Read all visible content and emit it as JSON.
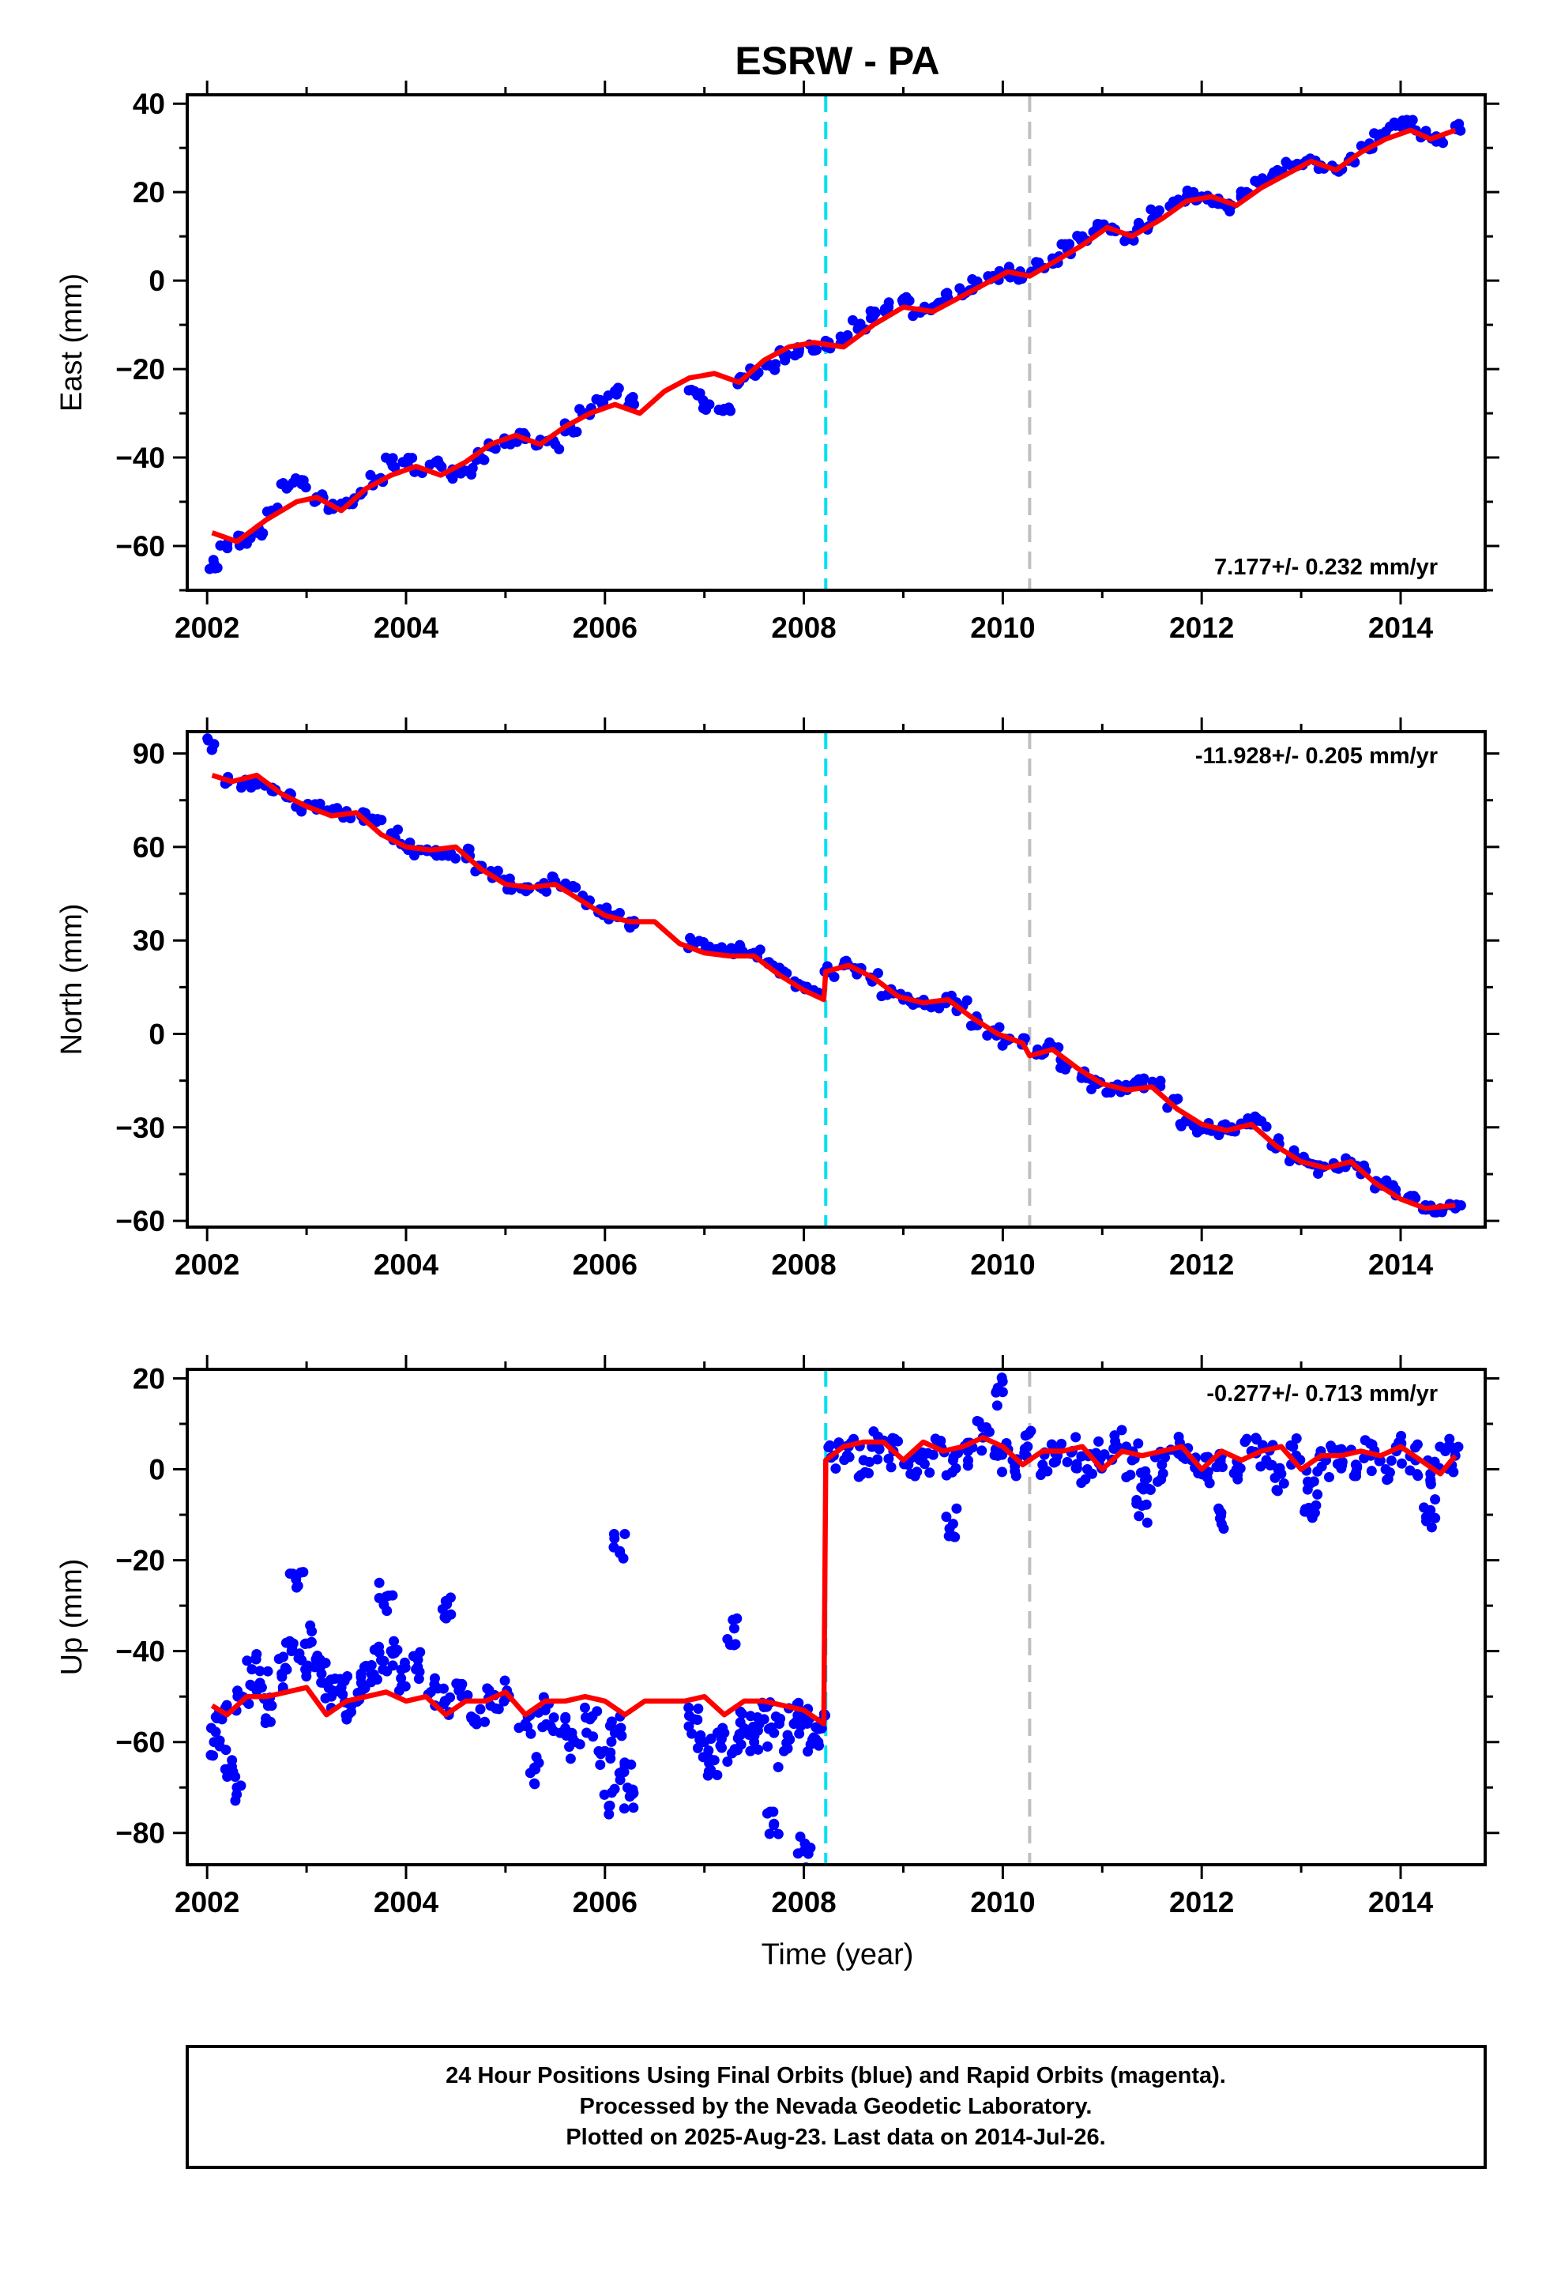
{
  "title": "ESRW - PA",
  "xlabel": "Time (year)",
  "colors": {
    "final_orbits": "#0000ff",
    "model_fit": "#ff0000",
    "event_line_1": "#00e0f0",
    "event_line_2": "#c0c0c0",
    "axes": "#000000"
  },
  "event_lines": [
    {
      "x": 2008.22,
      "color": "#00e0f0",
      "style": "dashed"
    },
    {
      "x": 2010.27,
      "color": "#c0c0c0",
      "style": "dashed"
    }
  ],
  "chart_data": [
    {
      "type": "scatter",
      "panel": "east",
      "ylabel": "East (mm)",
      "xlim": [
        2001.8,
        2014.85
      ],
      "ylim": [
        -70,
        42
      ],
      "xticks": [
        2002,
        2004,
        2006,
        2008,
        2010,
        2012,
        2014
      ],
      "yticks": [
        -60,
        -40,
        -20,
        0,
        20,
        40
      ],
      "rate_label": "7.177+/- 0.232 mm/yr",
      "rate_position": "bottom-right",
      "grid": false,
      "series": [
        {
          "name": "final_orbits",
          "style": "points",
          "x": [
            2002.07,
            2002.2,
            2002.35,
            2002.5,
            2002.65,
            2002.8,
            2002.95,
            2003.1,
            2003.25,
            2003.4,
            2003.55,
            2003.7,
            2003.85,
            2004.0,
            2004.15,
            2004.3,
            2004.45,
            2004.6,
            2004.75,
            2004.9,
            2005.05,
            2005.2,
            2005.35,
            2005.5,
            2005.65,
            2005.8,
            2005.95,
            2006.1,
            2006.25,
            2006.9,
            2007.05,
            2007.2,
            2007.35,
            2007.5,
            2007.65,
            2007.8,
            2007.95,
            2008.1,
            2008.25,
            2008.4,
            2008.55,
            2008.7,
            2008.85,
            2009.0,
            2009.15,
            2009.3,
            2009.45,
            2009.6,
            2009.75,
            2009.9,
            2010.05,
            2010.2,
            2010.35,
            2010.5,
            2010.65,
            2010.8,
            2010.95,
            2011.1,
            2011.25,
            2011.4,
            2011.55,
            2011.7,
            2011.85,
            2012.0,
            2012.15,
            2012.3,
            2012.45,
            2012.6,
            2012.75,
            2012.9,
            2013.05,
            2013.2,
            2013.35,
            2013.5,
            2013.65,
            2013.8,
            2013.95,
            2014.1,
            2014.25,
            2014.4,
            2014.55
          ],
          "y": [
            -64,
            -60,
            -59,
            -57,
            -52,
            -47,
            -46,
            -49,
            -51,
            -50,
            -48,
            -45,
            -41,
            -41,
            -43,
            -41,
            -44,
            -43,
            -40,
            -38,
            -37,
            -35,
            -36,
            -37,
            -33,
            -30,
            -27,
            -25,
            -27,
            -25,
            -28,
            -29,
            -23,
            -21,
            -19,
            -17,
            -16,
            -15,
            -14,
            -13,
            -10,
            -8,
            -6,
            -5,
            -7,
            -6,
            -4,
            -3,
            -1,
            1,
            2,
            1,
            3,
            5,
            7,
            10,
            12,
            12,
            10,
            12,
            15,
            17,
            19,
            19,
            18,
            17,
            20,
            22,
            24,
            26,
            27,
            26,
            25,
            28,
            30,
            33,
            35,
            35,
            33,
            32,
            35
          ]
        },
        {
          "name": "model_fit",
          "style": "line",
          "x": [
            2002.05,
            2002.3,
            2002.6,
            2002.9,
            2003.1,
            2003.35,
            2003.6,
            2003.85,
            2004.1,
            2004.35,
            2004.6,
            2004.85,
            2005.1,
            2005.35,
            2005.6,
            2005.85,
            2006.1,
            2006.35,
            2006.6,
            2006.85,
            2007.1,
            2007.35,
            2007.6,
            2007.85,
            2008.1,
            2008.4,
            2008.7,
            2009.0,
            2009.3,
            2009.55,
            2009.8,
            2010.05,
            2010.27,
            2010.5,
            2010.8,
            2011.05,
            2011.3,
            2011.6,
            2011.85,
            2012.1,
            2012.35,
            2012.6,
            2012.85,
            2013.1,
            2013.35,
            2013.6,
            2013.85,
            2014.1,
            2014.3,
            2014.55
          ],
          "y": [
            -57,
            -59,
            -54,
            -50,
            -49,
            -52,
            -47,
            -44,
            -42,
            -44,
            -41,
            -37,
            -35,
            -37,
            -33,
            -30,
            -28,
            -30,
            -25,
            -22,
            -21,
            -23,
            -18,
            -15,
            -14,
            -15,
            -10,
            -6,
            -7,
            -4,
            -1,
            2,
            1,
            4,
            8,
            12,
            10,
            14,
            18,
            19,
            17,
            21,
            24,
            27,
            25,
            29,
            32,
            34,
            32,
            34
          ]
        }
      ]
    },
    {
      "type": "scatter",
      "panel": "north",
      "ylabel": "North (mm)",
      "xlim": [
        2001.8,
        2014.85
      ],
      "ylim": [
        -62,
        97
      ],
      "xticks": [
        2002,
        2004,
        2006,
        2008,
        2010,
        2012,
        2014
      ],
      "yticks": [
        -60,
        -30,
        0,
        30,
        60,
        90
      ],
      "rate_label": "-11.928+/- 0.205 mm/yr",
      "rate_position": "top-right",
      "grid": false,
      "series": [
        {
          "name": "final_orbits",
          "style": "points",
          "x": [
            2002.07,
            2002.2,
            2002.35,
            2002.5,
            2002.65,
            2002.8,
            2002.95,
            2003.1,
            2003.25,
            2003.4,
            2003.55,
            2003.7,
            2003.85,
            2004.0,
            2004.15,
            2004.3,
            2004.45,
            2004.6,
            2004.75,
            2004.9,
            2005.05,
            2005.2,
            2005.35,
            2005.5,
            2005.65,
            2005.8,
            2005.95,
            2006.1,
            2006.25,
            2006.9,
            2007.05,
            2007.2,
            2007.35,
            2007.5,
            2007.65,
            2007.8,
            2007.95,
            2008.1,
            2008.25,
            2008.4,
            2008.55,
            2008.7,
            2008.85,
            2009.0,
            2009.15,
            2009.3,
            2009.45,
            2009.6,
            2009.75,
            2009.9,
            2010.05,
            2010.2,
            2010.35,
            2010.5,
            2010.65,
            2010.8,
            2010.95,
            2011.1,
            2011.25,
            2011.4,
            2011.55,
            2011.7,
            2011.85,
            2012.0,
            2012.15,
            2012.3,
            2012.45,
            2012.6,
            2012.75,
            2012.9,
            2013.05,
            2013.2,
            2013.35,
            2013.5,
            2013.65,
            2013.8,
            2013.95,
            2014.1,
            2014.25,
            2014.4,
            2014.55
          ],
          "y": [
            93,
            81,
            80,
            80,
            78,
            76,
            73,
            72,
            71,
            70,
            70,
            68,
            64,
            60,
            59,
            59,
            58,
            58,
            53,
            51,
            48,
            47,
            47,
            49,
            47,
            43,
            40,
            38,
            36,
            29,
            28,
            26,
            27,
            26,
            23,
            20,
            16,
            14,
            20,
            22,
            21,
            18,
            13,
            11,
            10,
            9,
            11,
            9,
            4,
            1,
            -2,
            -3,
            -5,
            -4,
            -10,
            -13,
            -16,
            -17,
            -18,
            -16,
            -17,
            -22,
            -28,
            -30,
            -31,
            -30,
            -29,
            -28,
            -35,
            -39,
            -41,
            -43,
            -43,
            -41,
            -44,
            -48,
            -50,
            -52,
            -55,
            -56,
            -56
          ]
        },
        {
          "name": "model_fit",
          "style": "line",
          "x": [
            2002.05,
            2002.25,
            2002.5,
            2002.75,
            2003.0,
            2003.25,
            2003.5,
            2003.75,
            2004.0,
            2004.25,
            2004.5,
            2004.75,
            2005.0,
            2005.25,
            2005.5,
            2005.75,
            2006.0,
            2006.25,
            2006.5,
            2006.75,
            2007.0,
            2007.25,
            2007.5,
            2007.75,
            2008.0,
            2008.2,
            2008.22,
            2008.45,
            2008.7,
            2008.95,
            2009.2,
            2009.45,
            2009.7,
            2009.95,
            2010.2,
            2010.27,
            2010.5,
            2010.75,
            2011.0,
            2011.25,
            2011.5,
            2011.75,
            2012.0,
            2012.25,
            2012.5,
            2012.75,
            2013.0,
            2013.25,
            2013.5,
            2013.75,
            2014.0,
            2014.25,
            2014.55
          ],
          "y": [
            83,
            81,
            83,
            77,
            73,
            70,
            71,
            64,
            60,
            59,
            60,
            53,
            48,
            47,
            48,
            43,
            38,
            36,
            36,
            29,
            26,
            25,
            25,
            19,
            14,
            11,
            20,
            22,
            18,
            12,
            10,
            11,
            5,
            0,
            -3,
            -7,
            -5,
            -11,
            -16,
            -18,
            -17,
            -24,
            -29,
            -31,
            -29,
            -36,
            -41,
            -43,
            -41,
            -48,
            -53,
            -56,
            -55
          ]
        }
      ]
    },
    {
      "type": "scatter",
      "panel": "up",
      "ylabel": "Up (mm)",
      "xlim": [
        2001.8,
        2014.85
      ],
      "ylim": [
        -87,
        22
      ],
      "xticks": [
        2002,
        2004,
        2006,
        2008,
        2010,
        2012,
        2014
      ],
      "yticks": [
        -80,
        -60,
        -40,
        -20,
        0,
        20
      ],
      "rate_label": "-0.277+/- 0.713 mm/yr",
      "rate_position": "top-right",
      "grid": false,
      "series": [
        {
          "name": "final_orbits",
          "style": "points",
          "x": [
            2002.07,
            2002.15,
            2002.25,
            2002.35,
            2002.45,
            2002.55,
            2002.65,
            2002.75,
            2002.85,
            2002.95,
            2003.05,
            2003.15,
            2003.25,
            2003.35,
            2003.45,
            2003.55,
            2003.65,
            2003.75,
            2003.85,
            2003.95,
            2004.1,
            2004.25,
            2004.4,
            2004.55,
            2004.7,
            2004.85,
            2005.0,
            2005.2,
            2005.4,
            2005.55,
            2005.7,
            2005.85,
            2006.0,
            2006.1,
            2006.2,
            2006.9,
            2007.0,
            2007.1,
            2007.2,
            2007.3,
            2007.4,
            2007.5,
            2007.6,
            2007.7,
            2007.8,
            2007.9,
            2008.0,
            2008.1,
            2008.18,
            2008.3,
            2008.45,
            2008.6,
            2008.75,
            2008.9,
            2009.05,
            2009.2,
            2009.35,
            2009.5,
            2009.65,
            2009.8,
            2009.95,
            2010.1,
            2010.25,
            2010.4,
            2010.55,
            2010.7,
            2010.85,
            2011.0,
            2011.15,
            2011.3,
            2011.45,
            2011.6,
            2011.75,
            2011.9,
            2012.05,
            2012.2,
            2012.35,
            2012.5,
            2012.65,
            2012.8,
            2012.95,
            2013.1,
            2013.25,
            2013.4,
            2013.55,
            2013.7,
            2013.85,
            2014.0,
            2014.15,
            2014.3,
            2014.45,
            2014.55,
            2002.3,
            2002.9,
            2003.8,
            2004.4,
            2006.05,
            2006.15,
            2007.7,
            2007.3,
            2008.0,
            2009.5,
            2010.0,
            2011.4,
            2012.2,
            2013.1,
            2014.3,
            2005.3,
            2006.25
          ],
          "y": [
            -60,
            -55,
            -64,
            -50,
            -44,
            -48,
            -52,
            -45,
            -40,
            -42,
            -38,
            -45,
            -50,
            -48,
            -52,
            -47,
            -45,
            -42,
            -40,
            -46,
            -44,
            -49,
            -51,
            -48,
            -55,
            -52,
            -50,
            -56,
            -53,
            -58,
            -60,
            -55,
            -62,
            -58,
            -65,
            -55,
            -60,
            -64,
            -58,
            -62,
            -57,
            -60,
            -55,
            -58,
            -62,
            -56,
            -54,
            -59,
            -57,
            3,
            5,
            2,
            6,
            4,
            1,
            3,
            5,
            2,
            4,
            7,
            3,
            2,
            5,
            1,
            3,
            4,
            0,
            3,
            5,
            2,
            -2,
            1,
            4,
            2,
            -1,
            3,
            0,
            4,
            2,
            -1,
            3,
            -3,
            2,
            4,
            1,
            3,
            0,
            5,
            2,
            -1,
            4,
            3,
            -70,
            -26,
            -28,
            -29,
            -74,
            -18,
            -78,
            -35,
            -84,
            -12,
            17,
            -8,
            -12,
            -10,
            -9,
            -66,
            -72
          ]
        },
        {
          "name": "model_fit",
          "style": "line",
          "x": [
            2002.05,
            2002.2,
            2002.4,
            2002.6,
            2002.8,
            2003.0,
            2003.2,
            2003.4,
            2003.6,
            2003.8,
            2004.0,
            2004.2,
            2004.4,
            2004.6,
            2004.8,
            2005.0,
            2005.2,
            2005.4,
            2005.6,
            2005.8,
            2006.0,
            2006.2,
            2006.4,
            2006.6,
            2006.8,
            2007.0,
            2007.2,
            2007.4,
            2007.6,
            2007.8,
            2008.0,
            2008.2,
            2008.22,
            2008.4,
            2008.6,
            2008.8,
            2009.0,
            2009.2,
            2009.4,
            2009.6,
            2009.8,
            2010.0,
            2010.2,
            2010.4,
            2010.6,
            2010.8,
            2011.0,
            2011.2,
            2011.4,
            2011.6,
            2011.8,
            2012.0,
            2012.2,
            2012.4,
            2012.6,
            2012.8,
            2013.0,
            2013.2,
            2013.4,
            2013.6,
            2013.8,
            2014.0,
            2014.2,
            2014.4,
            2014.55
          ],
          "y": [
            -52,
            -54,
            -50,
            -50,
            -49,
            -48,
            -54,
            -51,
            -50,
            -49,
            -51,
            -50,
            -54,
            -51,
            -51,
            -49,
            -54,
            -51,
            -51,
            -50,
            -51,
            -54,
            -51,
            -51,
            -51,
            -50,
            -54,
            -51,
            -51,
            -52,
            -53,
            -56,
            2,
            5,
            6,
            6,
            2,
            6,
            4,
            5,
            7,
            5,
            1,
            4,
            4,
            5,
            0,
            4,
            3,
            4,
            5,
            0,
            4,
            2,
            4,
            5,
            0,
            3,
            3,
            4,
            3,
            5,
            2,
            -1,
            3
          ]
        }
      ]
    }
  ],
  "caption": {
    "line1": "24 Hour Positions Using Final Orbits (blue) and Rapid Orbits (magenta).",
    "line2": "Processed by the Nevada Geodetic Laboratory.",
    "line3": "Plotted on 2025-Aug-23. Last data on 2014-Jul-26."
  }
}
